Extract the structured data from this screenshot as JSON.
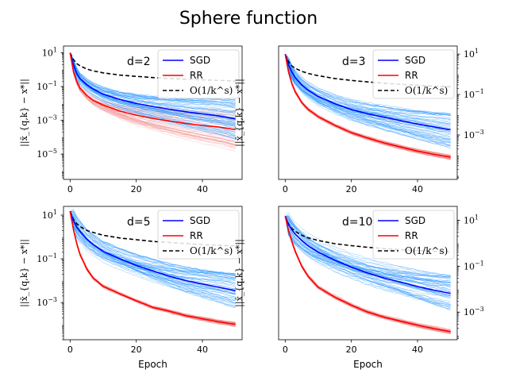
{
  "figure": {
    "title": "Sphere function",
    "xlabel": "Epoch",
    "ylabel": "||x̄_{q,k} − x*||",
    "legend": {
      "sgd": "SGD",
      "rr": "RR",
      "ref": "O(1/k^s)"
    },
    "colors": {
      "sgd": "#0000ff",
      "rr": "#ff0000",
      "ref": "#000000",
      "sgd_band": "#1e90ff",
      "rr_band": "#f08080"
    }
  },
  "chart_data": [
    {
      "type": "line",
      "panel_label": "d=2",
      "xlim": [
        -2,
        52
      ],
      "ylim_log10": [
        -6.5,
        1.4
      ],
      "yscale": "log",
      "xticks": [
        0,
        20,
        40
      ],
      "yticks_log10": [
        1,
        -1,
        -3,
        -5
      ],
      "ytick_side": "left",
      "show_xlabel": false,
      "series": [
        {
          "name": "SGD",
          "x": [
            0,
            1,
            2,
            3,
            5,
            7,
            10,
            15,
            20,
            25,
            30,
            35,
            40,
            45,
            50
          ],
          "y": [
            10,
            2.0,
            0.6,
            0.3,
            0.13,
            0.07,
            0.035,
            0.017,
            0.01,
            0.0065,
            0.0045,
            0.0032,
            0.0024,
            0.0018,
            0.0012
          ]
        },
        {
          "name": "RR",
          "x": [
            0,
            1,
            2,
            3,
            5,
            7,
            10,
            15,
            20,
            25,
            30,
            35,
            40,
            45,
            50
          ],
          "y": [
            10,
            0.8,
            0.2,
            0.08,
            0.03,
            0.015,
            0.008,
            0.0035,
            0.002,
            0.0013,
            0.0009,
            0.00065,
            0.0005,
            0.0004,
            0.00028
          ]
        },
        {
          "name": "O(1/k^s)",
          "x": [
            0,
            1,
            2,
            3,
            5,
            7,
            10,
            15,
            20,
            25,
            30,
            35,
            40,
            45,
            50
          ],
          "y": [
            10,
            4.0,
            2.3,
            1.7,
            1.1,
            0.85,
            0.65,
            0.48,
            0.4,
            0.34,
            0.3,
            0.27,
            0.25,
            0.23,
            0.21
          ]
        }
      ],
      "sgd_band_log10_spread": [
        0.3,
        1.2
      ],
      "rr_band_log10_spread": [
        0.15,
        1.3
      ]
    },
    {
      "type": "line",
      "panel_label": "d=3",
      "xlim": [
        -2,
        52
      ],
      "ylim_log10": [
        -5.2,
        1.4
      ],
      "yscale": "log",
      "xticks": [
        0,
        20,
        40
      ],
      "yticks_log10": [
        1,
        -1,
        -3
      ],
      "ytick_side": "right",
      "show_xlabel": false,
      "series": [
        {
          "name": "SGD",
          "x": [
            0,
            1,
            2,
            3,
            5,
            7,
            10,
            15,
            20,
            25,
            30,
            35,
            40,
            45,
            50
          ],
          "y": [
            10,
            3.0,
            1.3,
            0.7,
            0.3,
            0.16,
            0.08,
            0.035,
            0.018,
            0.011,
            0.0075,
            0.005,
            0.0035,
            0.0025,
            0.0018
          ]
        },
        {
          "name": "RR",
          "x": [
            0,
            1,
            2,
            3,
            5,
            7,
            10,
            15,
            20,
            25,
            30,
            35,
            40,
            45,
            50
          ],
          "y": [
            10,
            1.3,
            0.35,
            0.14,
            0.04,
            0.018,
            0.008,
            0.003,
            0.0013,
            0.0007,
            0.0004,
            0.00025,
            0.00016,
            0.00011,
            8e-05
          ]
        },
        {
          "name": "O(1/k^s)",
          "x": [
            0,
            1,
            2,
            3,
            5,
            7,
            10,
            15,
            20,
            25,
            30,
            35,
            40,
            45,
            50
          ],
          "y": [
            10,
            4.2,
            2.6,
            2.0,
            1.4,
            1.1,
            0.85,
            0.62,
            0.5,
            0.42,
            0.36,
            0.32,
            0.29,
            0.26,
            0.24
          ]
        }
      ],
      "sgd_band_log10_spread": [
        0.4,
        0.9
      ],
      "rr_band_log10_spread": [
        0.08,
        0.12
      ]
    },
    {
      "type": "line",
      "panel_label": "d=5",
      "xlim": [
        -2,
        52
      ],
      "ylim_log10": [
        -4.7,
        1.4
      ],
      "yscale": "log",
      "xticks": [
        0,
        20,
        40
      ],
      "yticks_log10": [
        1,
        -1,
        -3
      ],
      "ytick_side": "left",
      "show_xlabel": true,
      "series": [
        {
          "name": "SGD",
          "x": [
            0,
            1,
            2,
            3,
            5,
            7,
            10,
            15,
            20,
            25,
            30,
            35,
            40,
            45,
            50
          ],
          "y": [
            15,
            5.5,
            2.8,
            1.8,
            0.8,
            0.45,
            0.22,
            0.1,
            0.05,
            0.028,
            0.016,
            0.01,
            0.007,
            0.005,
            0.0035
          ]
        },
        {
          "name": "RR",
          "x": [
            0,
            1,
            2,
            3,
            5,
            7,
            10,
            15,
            20,
            25,
            30,
            35,
            40,
            45,
            50
          ],
          "y": [
            15,
            2.2,
            0.5,
            0.16,
            0.035,
            0.013,
            0.0055,
            0.0025,
            0.0012,
            0.0006,
            0.0004,
            0.00025,
            0.00018,
            0.00013,
            0.0001
          ]
        },
        {
          "name": "O(1/k^s)",
          "x": [
            0,
            1,
            2,
            3,
            5,
            7,
            10,
            15,
            20,
            25,
            30,
            35,
            40,
            45,
            50
          ],
          "y": [
            15,
            6.5,
            4.0,
            3.0,
            2.0,
            1.6,
            1.2,
            0.9,
            0.75,
            0.63,
            0.56,
            0.5,
            0.45,
            0.42,
            0.39
          ]
        }
      ],
      "sgd_band_log10_spread": [
        0.5,
        0.8
      ],
      "rr_band_log10_spread": [
        0.06,
        0.1
      ]
    },
    {
      "type": "line",
      "panel_label": "d=10",
      "xlim": [
        -2,
        52
      ],
      "ylim_log10": [
        -4.2,
        1.6
      ],
      "yscale": "log",
      "xticks": [
        0,
        20,
        40
      ],
      "yticks_log10": [
        1,
        -1,
        -3
      ],
      "ytick_side": "right",
      "show_xlabel": true,
      "series": [
        {
          "name": "SGD",
          "x": [
            0,
            1,
            2,
            3,
            5,
            7,
            10,
            15,
            20,
            25,
            30,
            35,
            40,
            45,
            50
          ],
          "y": [
            15,
            6.5,
            3.8,
            2.5,
            1.3,
            0.75,
            0.4,
            0.18,
            0.09,
            0.05,
            0.03,
            0.02,
            0.013,
            0.009,
            0.0065
          ]
        },
        {
          "name": "RR",
          "x": [
            0,
            1,
            2,
            3,
            5,
            7,
            10,
            15,
            20,
            25,
            30,
            35,
            40,
            45,
            50
          ],
          "y": [
            15,
            3.5,
            1.2,
            0.45,
            0.1,
            0.035,
            0.012,
            0.0045,
            0.002,
            0.001,
            0.0006,
            0.0004,
            0.00027,
            0.00019,
            0.00014
          ]
        },
        {
          "name": "O(1/k^s)",
          "x": [
            0,
            1,
            2,
            3,
            5,
            7,
            10,
            15,
            20,
            25,
            30,
            35,
            40,
            45,
            50
          ],
          "y": [
            15,
            6.8,
            4.3,
            3.3,
            2.2,
            1.7,
            1.3,
            0.95,
            0.78,
            0.66,
            0.58,
            0.52,
            0.47,
            0.44,
            0.41
          ]
        }
      ],
      "sgd_band_log10_spread": [
        0.5,
        0.8
      ],
      "rr_band_log10_spread": [
        0.06,
        0.1
      ]
    }
  ]
}
